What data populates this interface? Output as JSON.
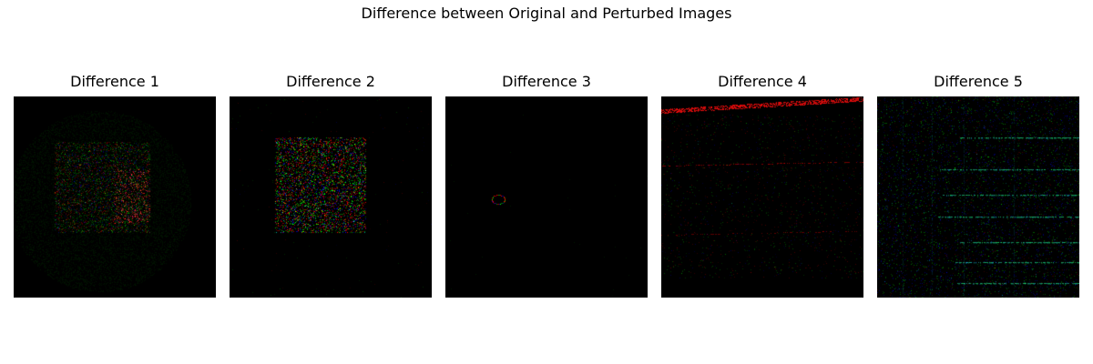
{
  "figure": {
    "title": "Difference between Original and Perturbed Images"
  },
  "panels": [
    {
      "title": "Difference 1",
      "pattern": "faint-disc-with-dense-red-green-speckle-block"
    },
    {
      "title": "Difference 2",
      "pattern": "dense-red-green-blue-speckle-block"
    },
    {
      "title": "Difference 3",
      "pattern": "single-tiny-colored-ring"
    },
    {
      "title": "Difference 4",
      "pattern": "red-horizontal-streaks-top-sparse-noise"
    },
    {
      "title": "Difference 5",
      "pattern": "green-blue-horizontal-bands-grid-noise"
    }
  ],
  "colors": {
    "background": "#000000",
    "noise_red": "#d42020",
    "noise_green": "#2aa52a",
    "noise_blue": "#2a2ad0"
  }
}
